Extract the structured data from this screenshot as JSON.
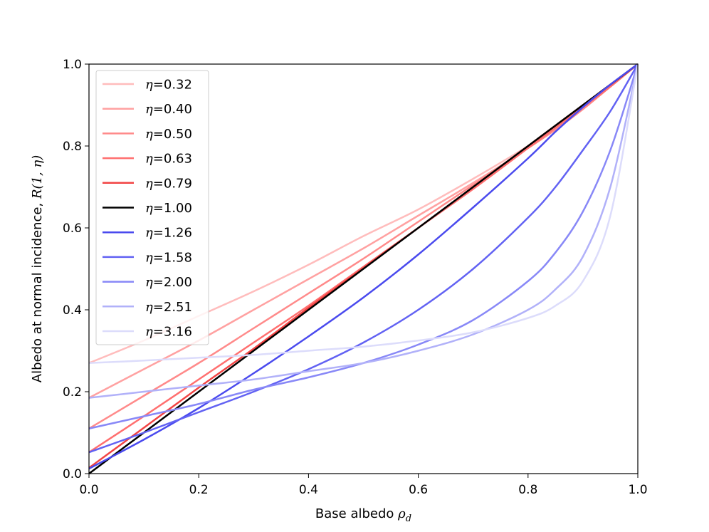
{
  "chart_data": {
    "type": "line",
    "title": "",
    "xlabel": "Base albedo ",
    "xlabel_symbol": "ρ",
    "xlabel_subscript": "d",
    "ylabel": "Albedo at normal incidence, ",
    "ylabel_symbol": "R(1, η)",
    "xlim": [
      0.0,
      1.0
    ],
    "ylim": [
      0.0,
      1.0
    ],
    "xticks": [
      "0.0",
      "0.2",
      "0.4",
      "0.6",
      "0.8",
      "1.0"
    ],
    "yticks": [
      "0.0",
      "0.2",
      "0.4",
      "0.6",
      "0.8",
      "1.0"
    ],
    "grid": false,
    "legend_position": "top-left",
    "legend_symbol": "η",
    "x": [
      0.0,
      0.1,
      0.2,
      0.3,
      0.4,
      0.5,
      0.6,
      0.7,
      0.8,
      0.85,
      0.9,
      0.95,
      1.0
    ],
    "series": [
      {
        "name": "=0.32",
        "eta": 0.32,
        "color": "#ffbcbc",
        "values": [
          0.27,
          0.325,
          0.385,
          0.445,
          0.51,
          0.58,
          0.645,
          0.72,
          0.8,
          0.845,
          0.895,
          0.945,
          1.0
        ]
      },
      {
        "name": "=0.40",
        "eta": 0.4,
        "color": "#ffa1a1",
        "values": [
          0.185,
          0.255,
          0.325,
          0.4,
          0.475,
          0.55,
          0.63,
          0.71,
          0.795,
          0.84,
          0.89,
          0.945,
          1.0
        ]
      },
      {
        "name": "=0.50",
        "eta": 0.5,
        "color": "#ff8a8a",
        "values": [
          0.11,
          0.19,
          0.27,
          0.355,
          0.44,
          0.525,
          0.615,
          0.705,
          0.795,
          0.84,
          0.89,
          0.945,
          1.0
        ]
      },
      {
        "name": "=0.63",
        "eta": 0.63,
        "color": "#ff6f6f",
        "values": [
          0.052,
          0.14,
          0.23,
          0.32,
          0.41,
          0.505,
          0.6,
          0.695,
          0.795,
          0.845,
          0.895,
          0.945,
          1.0
        ]
      },
      {
        "name": "=0.79",
        "eta": 0.79,
        "color": "#f24444",
        "values": [
          0.014,
          0.112,
          0.21,
          0.305,
          0.405,
          0.502,
          0.6,
          0.7,
          0.8,
          0.85,
          0.9,
          0.95,
          1.0
        ]
      },
      {
        "name": "=1.00",
        "eta": 1.0,
        "color": "#000000",
        "values": [
          0.0,
          0.1,
          0.2,
          0.3,
          0.4,
          0.5,
          0.6,
          0.7,
          0.8,
          0.85,
          0.9,
          0.95,
          1.0
        ]
      },
      {
        "name": "=1.26",
        "eta": 1.26,
        "color": "#4a4aee",
        "values": [
          0.012,
          0.083,
          0.16,
          0.245,
          0.335,
          0.43,
          0.535,
          0.65,
          0.77,
          0.835,
          0.895,
          0.95,
          1.0
        ]
      },
      {
        "name": "=1.58",
        "eta": 1.58,
        "color": "#6262f3",
        "values": [
          0.052,
          0.1,
          0.15,
          0.2,
          0.255,
          0.32,
          0.4,
          0.5,
          0.625,
          0.7,
          0.79,
          0.885,
          1.0
        ]
      },
      {
        "name": "=2.00",
        "eta": 2.0,
        "color": "#8888f7",
        "values": [
          0.11,
          0.14,
          0.17,
          0.205,
          0.235,
          0.27,
          0.315,
          0.375,
          0.47,
          0.54,
          0.64,
          0.79,
          1.0
        ]
      },
      {
        "name": "=2.51",
        "eta": 2.51,
        "color": "#b1b1f9",
        "values": [
          0.185,
          0.2,
          0.215,
          0.23,
          0.25,
          0.27,
          0.3,
          0.34,
          0.4,
          0.45,
          0.53,
          0.7,
          1.0
        ]
      },
      {
        "name": "=3.16",
        "eta": 3.16,
        "color": "#dcdcfb",
        "values": [
          0.27,
          0.276,
          0.283,
          0.29,
          0.3,
          0.31,
          0.325,
          0.345,
          0.38,
          0.41,
          0.47,
          0.63,
          1.0
        ]
      }
    ]
  }
}
